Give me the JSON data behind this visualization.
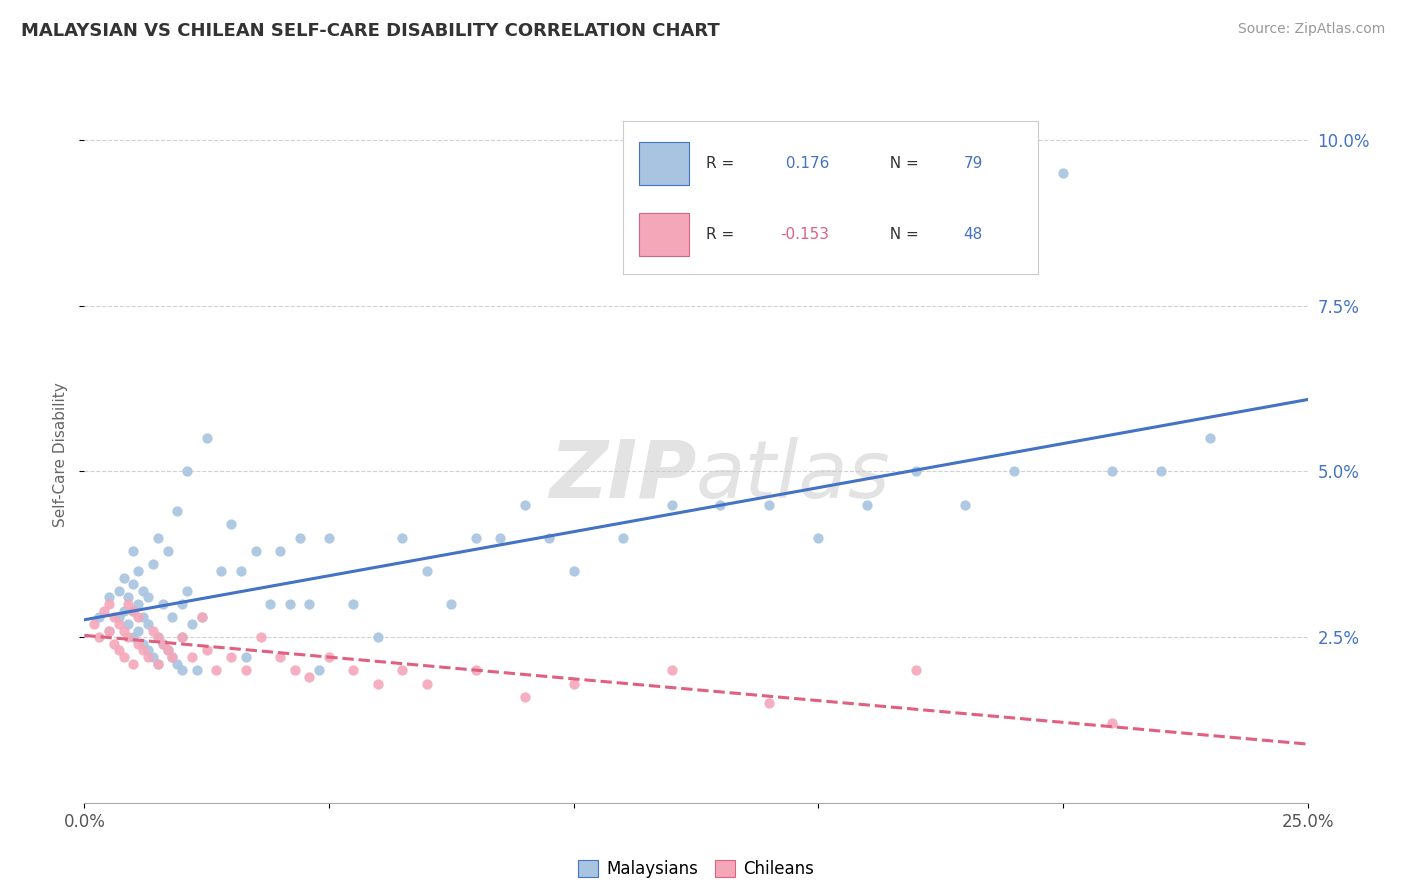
{
  "title": "MALAYSIAN VS CHILEAN SELF-CARE DISABILITY CORRELATION CHART",
  "source": "Source: ZipAtlas.com",
  "ylabel": "Self-Care Disability",
  "xlim": [
    0.0,
    0.25
  ],
  "ylim": [
    0.0,
    0.105
  ],
  "xticks": [
    0.0,
    0.05,
    0.1,
    0.15,
    0.2,
    0.25
  ],
  "xticklabels": [
    "0.0%",
    "",
    "",
    "",
    "",
    "25.0%"
  ],
  "yticks_right": [
    0.025,
    0.05,
    0.075,
    0.1
  ],
  "yticklabels_right": [
    "2.5%",
    "5.0%",
    "7.5%",
    "10.0%"
  ],
  "malaysia_R": 0.176,
  "malaysia_N": 79,
  "chile_R": -0.153,
  "chile_N": 48,
  "malaysia_color": "#a8c4e0",
  "chile_color": "#f4a7b9",
  "malaysia_line_color": "#4472c4",
  "chile_line_color": "#e06080",
  "background_color": "#ffffff",
  "grid_color": "#cccccc",
  "malaysia_scatter_x": [
    0.003,
    0.005,
    0.005,
    0.007,
    0.007,
    0.008,
    0.008,
    0.009,
    0.009,
    0.01,
    0.01,
    0.01,
    0.01,
    0.011,
    0.011,
    0.011,
    0.012,
    0.012,
    0.012,
    0.013,
    0.013,
    0.013,
    0.014,
    0.014,
    0.015,
    0.015,
    0.015,
    0.016,
    0.016,
    0.017,
    0.017,
    0.018,
    0.018,
    0.019,
    0.019,
    0.02,
    0.02,
    0.02,
    0.021,
    0.021,
    0.022,
    0.023,
    0.024,
    0.025,
    0.028,
    0.03,
    0.032,
    0.033,
    0.035,
    0.038,
    0.04,
    0.042,
    0.044,
    0.046,
    0.048,
    0.05,
    0.055,
    0.06,
    0.065,
    0.07,
    0.075,
    0.08,
    0.085,
    0.09,
    0.095,
    0.1,
    0.11,
    0.12,
    0.13,
    0.14,
    0.15,
    0.16,
    0.17,
    0.18,
    0.19,
    0.2,
    0.21,
    0.22,
    0.23
  ],
  "malaysia_scatter_y": [
    0.028,
    0.026,
    0.031,
    0.028,
    0.032,
    0.029,
    0.034,
    0.027,
    0.031,
    0.025,
    0.029,
    0.033,
    0.038,
    0.026,
    0.03,
    0.035,
    0.024,
    0.028,
    0.032,
    0.023,
    0.027,
    0.031,
    0.022,
    0.036,
    0.021,
    0.025,
    0.04,
    0.024,
    0.03,
    0.023,
    0.038,
    0.022,
    0.028,
    0.021,
    0.044,
    0.02,
    0.025,
    0.03,
    0.032,
    0.05,
    0.027,
    0.02,
    0.028,
    0.055,
    0.035,
    0.042,
    0.035,
    0.022,
    0.038,
    0.03,
    0.038,
    0.03,
    0.04,
    0.03,
    0.02,
    0.04,
    0.03,
    0.025,
    0.04,
    0.035,
    0.03,
    0.04,
    0.04,
    0.045,
    0.04,
    0.035,
    0.04,
    0.045,
    0.045,
    0.045,
    0.04,
    0.045,
    0.05,
    0.045,
    0.05,
    0.095,
    0.05,
    0.05,
    0.055
  ],
  "chile_scatter_x": [
    0.002,
    0.003,
    0.004,
    0.005,
    0.005,
    0.006,
    0.006,
    0.007,
    0.007,
    0.008,
    0.008,
    0.009,
    0.009,
    0.01,
    0.01,
    0.011,
    0.011,
    0.012,
    0.013,
    0.014,
    0.015,
    0.015,
    0.016,
    0.017,
    0.018,
    0.02,
    0.022,
    0.024,
    0.025,
    0.027,
    0.03,
    0.033,
    0.036,
    0.04,
    0.043,
    0.046,
    0.05,
    0.055,
    0.06,
    0.065,
    0.07,
    0.08,
    0.09,
    0.1,
    0.12,
    0.14,
    0.17,
    0.21
  ],
  "chile_scatter_y": [
    0.027,
    0.025,
    0.029,
    0.026,
    0.03,
    0.024,
    0.028,
    0.023,
    0.027,
    0.022,
    0.026,
    0.025,
    0.03,
    0.021,
    0.029,
    0.024,
    0.028,
    0.023,
    0.022,
    0.026,
    0.021,
    0.025,
    0.024,
    0.023,
    0.022,
    0.025,
    0.022,
    0.028,
    0.023,
    0.02,
    0.022,
    0.02,
    0.025,
    0.022,
    0.02,
    0.019,
    0.022,
    0.02,
    0.018,
    0.02,
    0.018,
    0.02,
    0.016,
    0.018,
    0.02,
    0.015,
    0.02,
    0.012
  ]
}
